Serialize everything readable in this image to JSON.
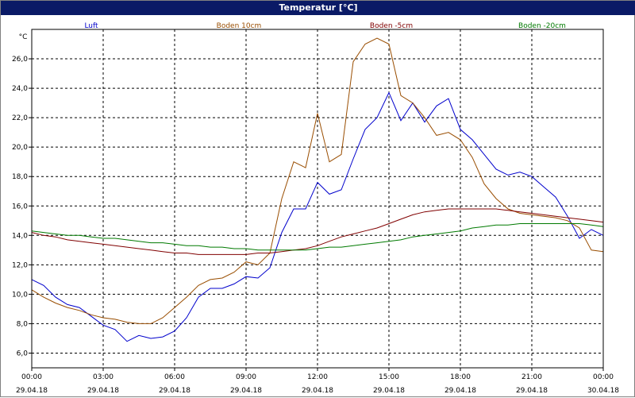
{
  "window": {
    "title": "Temperatur [°C]"
  },
  "colors": {
    "titlebar": "#0a1a66",
    "luft": "#0000cc",
    "boden10": "#994d00",
    "boden5": "#800000",
    "boden20": "#007a00",
    "grid": "#000000"
  },
  "chart_data": {
    "type": "line",
    "title": "Temperatur [°C]",
    "ylabel": "°C",
    "xlabel": "",
    "ylim": [
      5.0,
      28.0
    ],
    "xlim_hours": [
      0,
      24
    ],
    "grid": true,
    "legend_placement": "top",
    "y_ticks": [
      "6,0",
      "8,0",
      "10,0",
      "12,0",
      "14,0",
      "16,0",
      "18,0",
      "20,0",
      "22,0",
      "24,0",
      "26,0"
    ],
    "x_ticks": [
      {
        "time": "00:00",
        "date": "29.04.18"
      },
      {
        "time": "03:00",
        "date": "29.04.18"
      },
      {
        "time": "06:00",
        "date": "29.04.18"
      },
      {
        "time": "09:00",
        "date": "29.04.18"
      },
      {
        "time": "12:00",
        "date": "29.04.18"
      },
      {
        "time": "15:00",
        "date": "29.04.18"
      },
      {
        "time": "18:00",
        "date": "29.04.18"
      },
      {
        "time": "21:00",
        "date": "29.04.18"
      },
      {
        "time": "00:00",
        "date": "30.04.18"
      }
    ],
    "x_hours": [
      0,
      0.5,
      1,
      1.5,
      2,
      2.5,
      3,
      3.5,
      4,
      4.5,
      5,
      5.5,
      6,
      6.5,
      7,
      7.5,
      8,
      8.5,
      9,
      9.5,
      10,
      10.5,
      11,
      11.5,
      12,
      12.5,
      13,
      13.5,
      14,
      14.5,
      15,
      15.5,
      16,
      16.5,
      17,
      17.5,
      18,
      18.5,
      19,
      19.5,
      20,
      20.5,
      21,
      21.5,
      22,
      22.5,
      23,
      23.5,
      24
    ],
    "series": [
      {
        "name": "Luft",
        "color": "#0000cc",
        "values": [
          11.0,
          10.6,
          9.8,
          9.3,
          9.1,
          8.5,
          7.9,
          7.6,
          6.8,
          7.2,
          7.0,
          7.1,
          7.5,
          8.4,
          9.8,
          10.4,
          10.4,
          10.7,
          11.2,
          11.1,
          11.8,
          14.2,
          15.8,
          15.8,
          17.6,
          16.8,
          17.1,
          19.2,
          21.2,
          22.0,
          23.7,
          21.8,
          23.0,
          21.7,
          22.8,
          23.3,
          21.2,
          20.5,
          19.5,
          18.5,
          18.1,
          18.3,
          18.0,
          17.3,
          16.6,
          15.3,
          13.8,
          14.4,
          14.0
        ]
      },
      {
        "name": "Boden 10cm",
        "color": "#994d00",
        "values": [
          10.3,
          9.8,
          9.4,
          9.1,
          8.9,
          8.6,
          8.4,
          8.3,
          8.1,
          8.0,
          8.0,
          8.4,
          9.1,
          9.8,
          10.6,
          11.0,
          11.1,
          11.5,
          12.2,
          12.0,
          12.8,
          16.5,
          19.0,
          18.6,
          22.3,
          19.0,
          19.5,
          25.8,
          27.0,
          27.4,
          27.0,
          23.5,
          23.0,
          22.0,
          20.8,
          21.0,
          20.5,
          19.3,
          17.5,
          16.5,
          15.8,
          15.5,
          15.4,
          15.3,
          15.2,
          15.0,
          14.5,
          13.0,
          12.9
        ]
      },
      {
        "name": "Boden -5cm",
        "color": "#800000",
        "values": [
          14.2,
          14.0,
          13.9,
          13.7,
          13.6,
          13.5,
          13.4,
          13.3,
          13.2,
          13.1,
          13.0,
          12.9,
          12.8,
          12.8,
          12.7,
          12.7,
          12.7,
          12.7,
          12.7,
          12.8,
          12.8,
          12.9,
          13.0,
          13.1,
          13.3,
          13.6,
          13.9,
          14.1,
          14.3,
          14.5,
          14.8,
          15.1,
          15.4,
          15.6,
          15.7,
          15.8,
          15.8,
          15.8,
          15.8,
          15.8,
          15.7,
          15.6,
          15.5,
          15.4,
          15.3,
          15.2,
          15.1,
          15.0,
          14.9
        ]
      },
      {
        "name": "Boden -20cm",
        "color": "#007a00",
        "values": [
          14.3,
          14.2,
          14.1,
          14.0,
          14.0,
          13.9,
          13.8,
          13.8,
          13.7,
          13.6,
          13.5,
          13.5,
          13.4,
          13.3,
          13.3,
          13.2,
          13.2,
          13.1,
          13.1,
          13.0,
          13.0,
          13.0,
          13.0,
          13.0,
          13.1,
          13.2,
          13.2,
          13.3,
          13.4,
          13.5,
          13.6,
          13.7,
          13.9,
          14.0,
          14.1,
          14.2,
          14.3,
          14.5,
          14.6,
          14.7,
          14.7,
          14.8,
          14.8,
          14.8,
          14.8,
          14.8,
          14.8,
          14.7,
          14.6
        ]
      }
    ]
  }
}
